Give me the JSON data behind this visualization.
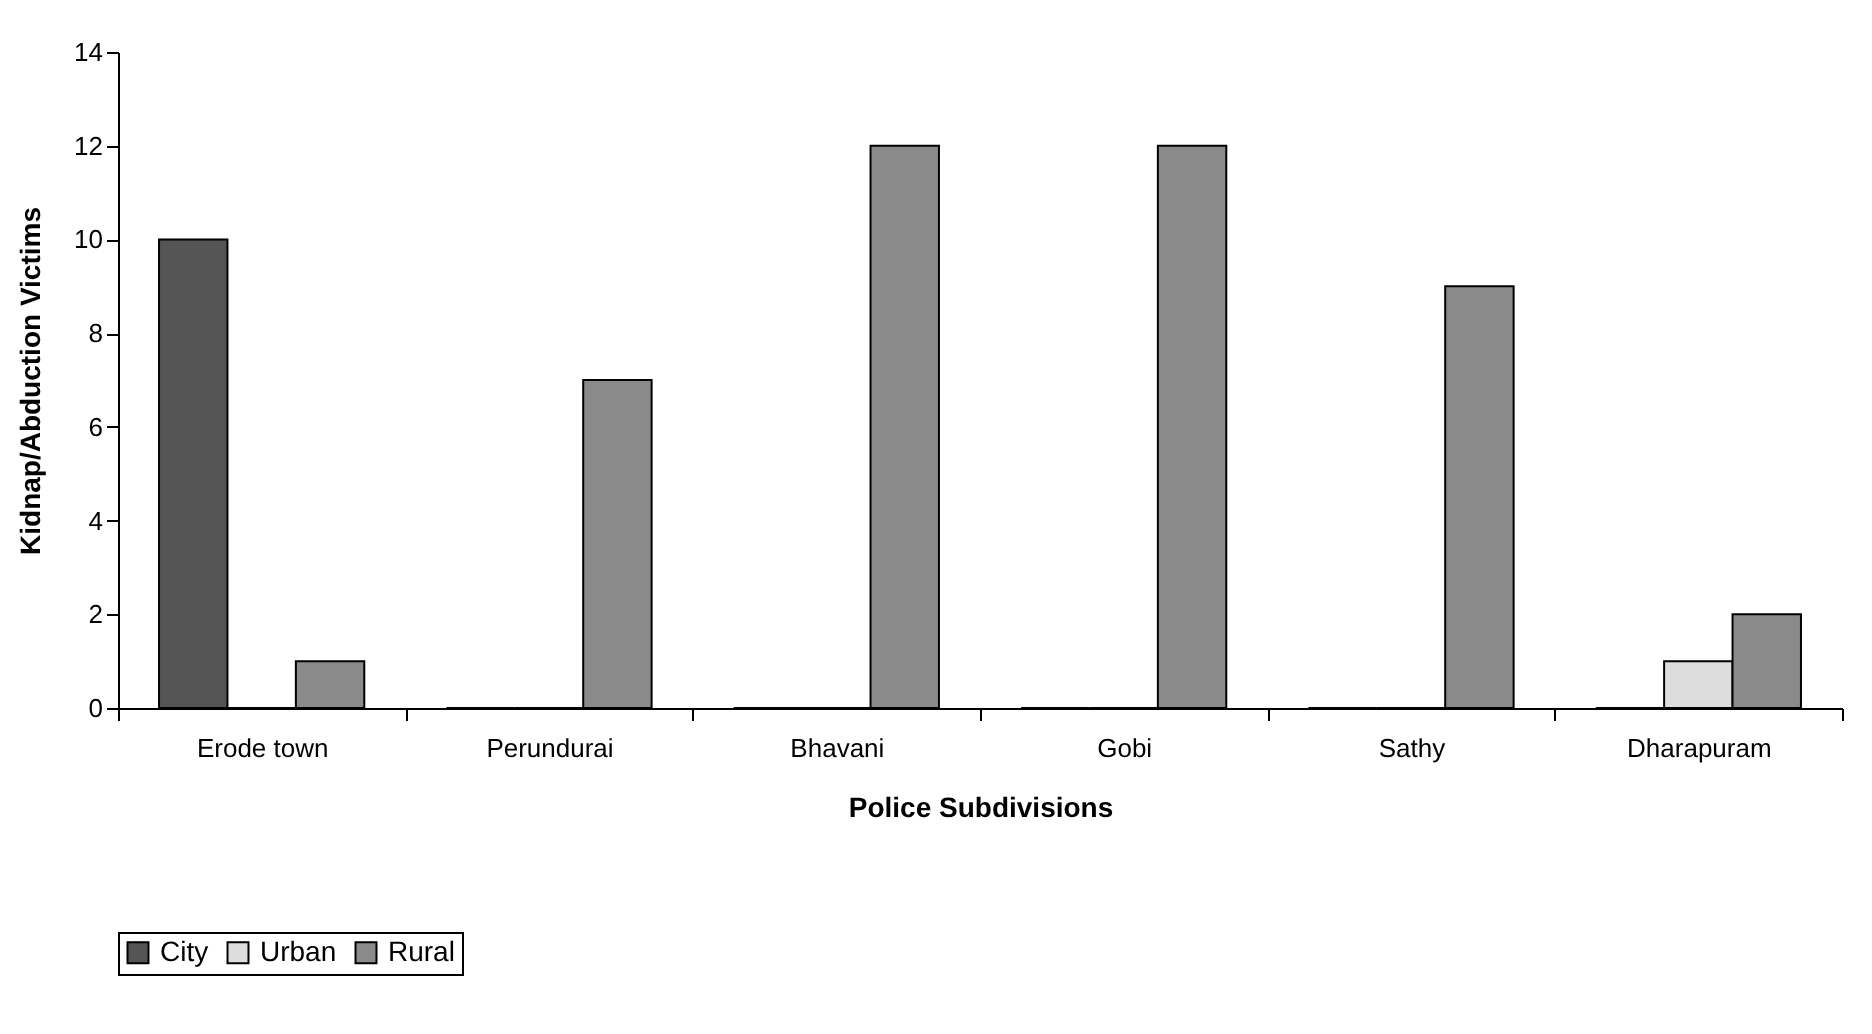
{
  "chart_data": {
    "type": "bar",
    "xlabel": "Police Subdivisions",
    "ylabel": "Kidnap/Abduction Victims",
    "categories": [
      "Erode town",
      "Perundurai",
      "Bhavani",
      "Gobi",
      "Sathy",
      "Dharapuram"
    ],
    "series": [
      {
        "name": "City",
        "color": "#555555",
        "values": [
          10,
          0,
          0,
          0,
          0,
          0
        ]
      },
      {
        "name": "Urban",
        "color": "#dddddd",
        "values": [
          0,
          0,
          0,
          0,
          0,
          1
        ]
      },
      {
        "name": "Rural",
        "color": "#8a8a8a",
        "values": [
          1,
          7,
          12,
          12,
          9,
          2
        ]
      }
    ],
    "ylim": [
      0,
      14
    ],
    "yticks": [
      0,
      2,
      4,
      6,
      8,
      10,
      12,
      14
    ],
    "grid": false,
    "legend": "bottom"
  }
}
